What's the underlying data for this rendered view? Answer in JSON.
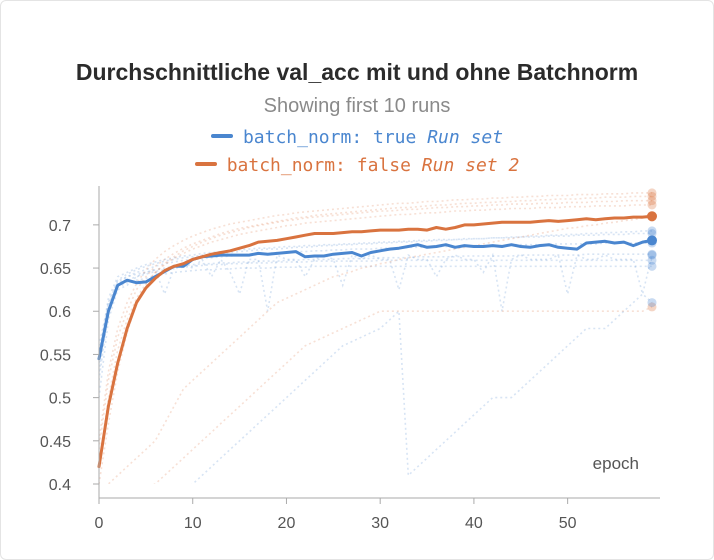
{
  "chart_data": {
    "type": "line",
    "title": "Durchschnittliche val_acc mit und ohne Batchnorm",
    "subtitle": "Showing first 10 runs",
    "xlabel": "epoch",
    "ylabel": "",
    "xlim": [
      0,
      59
    ],
    "ylim": [
      0.4,
      0.745
    ],
    "x_ticks": [
      0,
      10,
      20,
      30,
      40,
      50
    ],
    "y_ticks": [
      0.4,
      0.45,
      0.5,
      0.55,
      0.6,
      0.65,
      0.7
    ],
    "y_tick_labels": [
      "0.4",
      "0.45",
      "0.5",
      "0.55",
      "0.6",
      "0.65",
      "0.7"
    ],
    "grid": false,
    "legend_position": "top-center",
    "series": [
      {
        "name": "batch_norm: true",
        "group": "Run set",
        "color": "#4a86cf",
        "values": [
          0.545,
          0.6,
          0.63,
          0.636,
          0.633,
          0.634,
          0.64,
          0.646,
          0.652,
          0.652,
          0.66,
          0.663,
          0.664,
          0.665,
          0.665,
          0.665,
          0.665,
          0.667,
          0.666,
          0.667,
          0.668,
          0.669,
          0.663,
          0.664,
          0.664,
          0.666,
          0.667,
          0.668,
          0.664,
          0.668,
          0.67,
          0.672,
          0.673,
          0.675,
          0.677,
          0.674,
          0.675,
          0.677,
          0.674,
          0.676,
          0.675,
          0.675,
          0.676,
          0.675,
          0.677,
          0.675,
          0.674,
          0.676,
          0.677,
          0.674,
          0.673,
          0.672,
          0.679,
          0.68,
          0.681,
          0.679,
          0.68,
          0.676,
          0.68,
          0.682
        ]
      },
      {
        "name": "batch_norm: false",
        "group": "Run set 2",
        "color": "#d9733f",
        "values": [
          0.42,
          0.49,
          0.54,
          0.58,
          0.61,
          0.627,
          0.638,
          0.647,
          0.652,
          0.655,
          0.66,
          0.663,
          0.666,
          0.668,
          0.67,
          0.673,
          0.676,
          0.68,
          0.681,
          0.682,
          0.684,
          0.686,
          0.688,
          0.69,
          0.69,
          0.69,
          0.691,
          0.692,
          0.692,
          0.693,
          0.694,
          0.694,
          0.694,
          0.695,
          0.695,
          0.694,
          0.697,
          0.695,
          0.697,
          0.7,
          0.7,
          0.701,
          0.702,
          0.703,
          0.703,
          0.703,
          0.703,
          0.704,
          0.705,
          0.704,
          0.705,
          0.706,
          0.707,
          0.706,
          0.707,
          0.708,
          0.708,
          0.709,
          0.709,
          0.71
        ]
      }
    ],
    "background_runs": [
      {
        "color": "#4a86cf",
        "values": [
          0.56,
          0.61,
          0.635,
          0.64,
          0.643,
          0.645,
          0.648,
          0.65,
          0.652,
          0.653,
          0.654,
          0.655,
          0.655,
          0.656,
          0.656,
          0.657,
          0.657,
          0.658,
          0.658,
          0.658,
          0.659,
          0.659,
          0.66,
          0.66,
          0.66,
          0.66,
          0.661,
          0.661,
          0.661,
          0.661,
          0.662,
          0.662,
          0.662,
          0.662,
          0.663,
          0.663,
          0.663,
          0.663,
          0.663,
          0.664,
          0.664,
          0.664,
          0.664,
          0.664,
          0.664,
          0.665,
          0.665,
          0.665,
          0.665,
          0.665,
          0.665,
          0.665,
          0.666,
          0.666,
          0.666,
          0.666,
          0.666,
          0.666,
          0.666,
          0.666
        ]
      },
      {
        "color": "#4a86cf",
        "values": [
          0.52,
          0.6,
          0.628,
          0.633,
          0.636,
          0.638,
          0.641,
          0.643,
          0.645,
          0.646,
          0.647,
          0.648,
          0.648,
          0.649,
          0.649,
          0.65,
          0.65,
          0.65,
          0.65,
          0.651,
          0.651,
          0.651,
          0.651,
          0.652,
          0.652,
          0.652,
          0.652,
          0.652,
          0.652,
          0.652,
          0.652,
          0.652,
          0.652,
          0.652,
          0.652,
          0.652,
          0.652,
          0.652,
          0.652,
          0.652,
          0.652,
          0.652,
          0.652,
          0.652,
          0.652,
          0.652,
          0.652,
          0.652,
          0.652,
          0.652,
          0.652,
          0.652,
          0.652,
          0.652,
          0.652,
          0.652,
          0.652,
          0.652,
          0.652,
          0.652
        ]
      },
      {
        "color": "#4a86cf",
        "values": [
          0.55,
          0.615,
          0.64,
          0.645,
          0.65,
          0.654,
          0.657,
          0.66,
          0.662,
          0.664,
          0.665,
          0.667,
          0.668,
          0.669,
          0.67,
          0.671,
          0.672,
          0.673,
          0.673,
          0.674,
          0.675,
          0.675,
          0.676,
          0.676,
          0.677,
          0.677,
          0.678,
          0.678,
          0.679,
          0.679,
          0.68,
          0.68,
          0.681,
          0.681,
          0.682,
          0.682,
          0.683,
          0.683,
          0.683,
          0.684,
          0.684,
          0.684,
          0.685,
          0.685,
          0.685,
          0.686,
          0.686,
          0.686,
          0.687,
          0.687,
          0.687,
          0.688,
          0.688,
          0.688,
          0.689,
          0.689,
          0.689,
          0.69,
          0.69,
          0.69
        ]
      },
      {
        "color": "#4a86cf",
        "values": [
          0.54,
          0.605,
          0.632,
          0.64,
          0.645,
          0.648,
          0.652,
          0.655,
          0.657,
          0.659,
          0.66,
          0.661,
          0.662,
          0.663,
          0.664,
          0.665,
          0.666,
          0.666,
          0.667,
          0.668,
          0.668,
          0.669,
          0.669,
          0.67,
          0.67,
          0.671,
          0.671,
          0.672,
          0.672,
          0.672,
          0.673,
          0.673,
          0.673,
          0.674,
          0.674,
          0.674,
          0.675,
          0.675,
          0.675,
          0.675,
          0.676,
          0.676,
          0.676,
          0.676,
          0.677,
          0.677,
          0.677,
          0.677,
          0.677,
          0.678,
          0.678,
          0.678,
          0.678,
          0.678,
          0.679,
          0.679,
          0.679,
          0.679,
          0.679,
          0.679
        ]
      },
      {
        "color": "#4a86cf",
        "values": [
          0.5,
          0.59,
          0.625,
          0.63,
          0.64,
          0.645,
          0.648,
          0.62,
          0.65,
          0.655,
          0.65,
          0.66,
          0.64,
          0.66,
          0.645,
          0.62,
          0.66,
          0.66,
          0.6,
          0.665,
          0.66,
          0.66,
          0.64,
          0.66,
          0.665,
          0.66,
          0.63,
          0.665,
          0.66,
          0.665,
          0.66,
          0.66,
          0.625,
          0.665,
          0.66,
          0.66,
          0.64,
          0.66,
          0.665,
          0.66,
          0.66,
          0.645,
          0.665,
          0.6,
          0.66,
          0.665,
          0.66,
          0.66,
          0.66,
          0.665,
          0.62,
          0.665,
          0.66,
          0.66,
          0.665,
          0.66,
          0.66,
          0.66,
          0.62,
          0.665
        ]
      },
      {
        "color": "#4a86cf",
        "values": [
          0.53,
          0.6,
          0.63,
          0.636,
          0.64,
          0.643,
          0.646,
          0.648,
          0.65,
          0.651,
          0.652,
          0.653,
          0.654,
          0.654,
          0.655,
          0.655,
          0.656,
          0.656,
          0.656,
          0.657,
          0.657,
          0.657,
          0.657,
          0.658,
          0.658,
          0.658,
          0.658,
          0.658,
          0.658,
          0.658,
          0.659,
          0.659,
          0.659,
          0.659,
          0.659,
          0.659,
          0.659,
          0.659,
          0.659,
          0.659,
          0.659,
          0.659,
          0.659,
          0.659,
          0.659,
          0.659,
          0.659,
          0.659,
          0.659,
          0.659,
          0.659,
          0.659,
          0.659,
          0.659,
          0.659,
          0.659,
          0.659,
          0.659,
          0.659,
          0.659
        ]
      },
      {
        "color": "#4a86cf",
        "values": [
          0.55,
          0.608,
          0.636,
          0.643,
          0.648,
          0.652,
          0.655,
          0.658,
          0.66,
          0.662,
          0.663,
          0.665,
          0.666,
          0.667,
          0.668,
          0.669,
          0.67,
          0.671,
          0.672,
          0.672,
          0.673,
          0.674,
          0.674,
          0.675,
          0.676,
          0.676,
          0.677,
          0.677,
          0.678,
          0.678,
          0.679,
          0.679,
          0.68,
          0.68,
          0.681,
          0.681,
          0.682,
          0.682,
          0.683,
          0.683,
          0.684,
          0.684,
          0.685,
          0.685,
          0.686,
          0.686,
          0.687,
          0.687,
          0.688,
          0.688,
          0.689,
          0.689,
          0.69,
          0.69,
          0.691,
          0.691,
          0.692,
          0.692,
          0.693,
          0.693
        ]
      },
      {
        "color": "#d9733f",
        "values": [
          0.4,
          0.47,
          0.53,
          0.575,
          0.61,
          0.63,
          0.645,
          0.655,
          0.663,
          0.67,
          0.675,
          0.68,
          0.684,
          0.688,
          0.691,
          0.694,
          0.697,
          0.699,
          0.701,
          0.703,
          0.705,
          0.706,
          0.708,
          0.709,
          0.71,
          0.711,
          0.712,
          0.713,
          0.714,
          0.715,
          0.716,
          0.716,
          0.717,
          0.718,
          0.718,
          0.719,
          0.72,
          0.72,
          0.721,
          0.721,
          0.722,
          0.722,
          0.723,
          0.723,
          0.724,
          0.724,
          0.724,
          0.725,
          0.725,
          0.725,
          0.726,
          0.726,
          0.726,
          0.727,
          0.727,
          0.727,
          0.728,
          0.728,
          0.728,
          0.728
        ]
      },
      {
        "color": "#d9733f",
        "values": [
          0.44,
          0.52,
          0.57,
          0.6,
          0.625,
          0.64,
          0.652,
          0.66,
          0.667,
          0.673,
          0.678,
          0.682,
          0.686,
          0.69,
          0.693,
          0.696,
          0.698,
          0.7,
          0.702,
          0.704,
          0.706,
          0.708,
          0.709,
          0.711,
          0.712,
          0.713,
          0.714,
          0.715,
          0.716,
          0.717,
          0.718,
          0.719,
          0.72,
          0.72,
          0.721,
          0.722,
          0.723,
          0.723,
          0.724,
          0.725,
          0.725,
          0.726,
          0.726,
          0.727,
          0.727,
          0.728,
          0.728,
          0.729,
          0.729,
          0.73,
          0.73,
          0.73,
          0.731,
          0.731,
          0.732,
          0.732,
          0.732,
          0.733,
          0.733,
          0.733
        ]
      },
      {
        "color": "#d9733f",
        "values": [
          0.42,
          0.5,
          0.555,
          0.59,
          0.615,
          0.632,
          0.645,
          0.654,
          0.661,
          0.667,
          0.672,
          0.676,
          0.68,
          0.683,
          0.686,
          0.689,
          0.691,
          0.693,
          0.695,
          0.697,
          0.699,
          0.7,
          0.702,
          0.703,
          0.704,
          0.705,
          0.706,
          0.707,
          0.708,
          0.709,
          0.71,
          0.711,
          0.712,
          0.712,
          0.713,
          0.714,
          0.714,
          0.715,
          0.716,
          0.716,
          0.717,
          0.717,
          0.718,
          0.718,
          0.719,
          0.719,
          0.719,
          0.72,
          0.72,
          0.72,
          0.721,
          0.721,
          0.721,
          0.722,
          0.722,
          0.722,
          0.722,
          0.723,
          0.723,
          0.723
        ]
      },
      {
        "color": "#d9733f",
        "values": [
          0.45,
          0.53,
          0.58,
          0.61,
          0.632,
          0.648,
          0.66,
          0.669,
          0.676,
          0.682,
          0.687,
          0.691,
          0.695,
          0.698,
          0.701,
          0.703,
          0.705,
          0.707,
          0.709,
          0.711,
          0.712,
          0.714,
          0.715,
          0.716,
          0.717,
          0.718,
          0.719,
          0.72,
          0.721,
          0.722,
          0.723,
          0.724,
          0.725,
          0.725,
          0.726,
          0.727,
          0.727,
          0.728,
          0.729,
          0.729,
          0.73,
          0.73,
          0.731,
          0.731,
          0.732,
          0.732,
          0.733,
          0.733,
          0.734,
          0.734,
          0.734,
          0.735,
          0.735,
          0.735,
          0.736,
          0.736,
          0.736,
          0.737,
          0.737,
          0.737
        ]
      },
      {
        "color": "#d9733f",
        "values": [
          0.38,
          0.4,
          0.41,
          0.42,
          0.43,
          0.44,
          0.45,
          0.47,
          0.49,
          0.51,
          0.52,
          0.53,
          0.54,
          0.55,
          0.56,
          0.57,
          0.58,
          0.59,
          0.6,
          0.61,
          0.615,
          0.62,
          0.625,
          0.63,
          0.635,
          0.64,
          0.643,
          0.646,
          0.65,
          0.652,
          0.655,
          0.657,
          0.66,
          0.662,
          0.664,
          0.666,
          0.668,
          0.67,
          0.672,
          0.674,
          0.676,
          0.678,
          0.68,
          0.682,
          0.684,
          0.686,
          0.688,
          0.69,
          0.692,
          0.694,
          0.696,
          0.697,
          0.699,
          0.7,
          0.702,
          0.703,
          0.705,
          0.706,
          0.708,
          0.709
        ]
      },
      {
        "color": "#d9733f",
        "values": [
          0.36,
          0.37,
          0.38,
          0.385,
          0.39,
          0.395,
          0.4,
          0.41,
          0.42,
          0.43,
          0.44,
          0.45,
          0.46,
          0.47,
          0.48,
          0.49,
          0.5,
          0.51,
          0.52,
          0.53,
          0.54,
          0.55,
          0.56,
          0.565,
          0.57,
          0.575,
          0.58,
          0.585,
          0.59,
          0.595,
          0.6,
          0.6,
          0.6,
          0.6,
          0.6,
          0.6,
          0.6,
          0.6,
          0.6,
          0.6,
          0.6,
          0.6,
          0.6,
          0.6,
          0.6,
          0.6,
          0.6,
          0.6,
          0.6,
          0.6,
          0.6,
          0.6,
          0.6,
          0.6,
          0.6,
          0.6,
          0.6,
          0.6,
          0.6,
          0.605
        ]
      },
      {
        "color": "#4a86cf",
        "values": [
          0.3,
          0.31,
          0.32,
          0.33,
          0.34,
          0.35,
          0.36,
          0.37,
          0.38,
          0.39,
          0.4,
          0.41,
          0.42,
          0.43,
          0.44,
          0.45,
          0.46,
          0.47,
          0.48,
          0.49,
          0.5,
          0.51,
          0.52,
          0.53,
          0.54,
          0.55,
          0.56,
          0.565,
          0.57,
          0.575,
          0.58,
          0.59,
          0.6,
          0.41,
          0.42,
          0.43,
          0.44,
          0.45,
          0.46,
          0.47,
          0.48,
          0.49,
          0.5,
          0.5,
          0.5,
          0.51,
          0.52,
          0.53,
          0.54,
          0.55,
          0.56,
          0.57,
          0.58,
          0.58,
          0.58,
          0.59,
          0.6,
          0.61,
          0.62,
          0.61
        ]
      }
    ]
  }
}
